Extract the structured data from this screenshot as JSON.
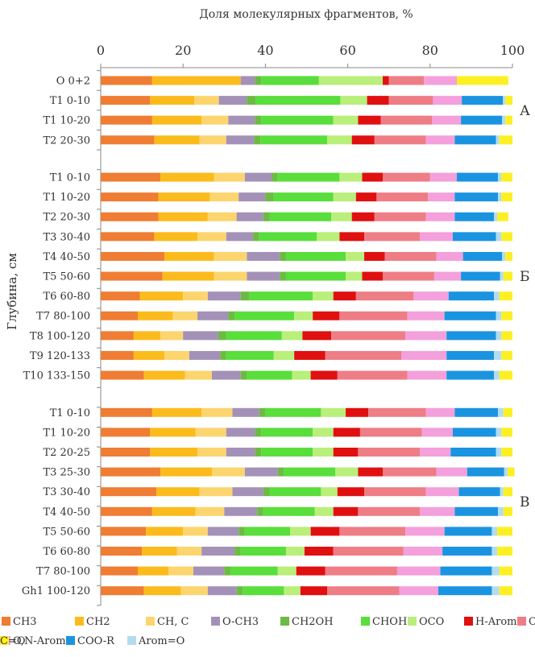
{
  "chart_data": {
    "type": "bar",
    "orientation": "horizontal",
    "stacked": true,
    "title": "Доля молекулярных фрагментов, %",
    "xlabel": "Доля молекулярных фрагментов, %",
    "ylabel": "Глубина, см",
    "xlim": [
      0,
      100
    ],
    "xticks": [
      "0",
      "20",
      "40",
      "60",
      "80",
      "100"
    ],
    "grid": false,
    "legend_position": "bottom",
    "series": [
      {
        "name": "CH3",
        "color": "#ef7d33"
      },
      {
        "name": "CH2",
        "color": "#fbbb1c"
      },
      {
        "name": "CH, C",
        "color": "#fdd56e"
      },
      {
        "name": "O-CH3",
        "color": "#a491b8"
      },
      {
        "name": "CH2OH",
        "color": "#6dba44"
      },
      {
        "name": "CHOH",
        "color": "#59de3b"
      },
      {
        "name": "OCO",
        "color": "#b9ef7a"
      },
      {
        "name": "H-Arom",
        "color": "#e01010"
      },
      {
        "name": "C-Arom",
        "color": "#ee7d86"
      },
      {
        "name": "O,N-Arom",
        "color": "#f3a0dc"
      },
      {
        "name": "COO-R",
        "color": "#1a94e0"
      },
      {
        "name": "Arom=O",
        "color": "#b2dcf0"
      },
      {
        "name": "C=O",
        "color": "#fcf024"
      }
    ],
    "groups": [
      {
        "label": "А",
        "rows": [
          {
            "label": "O 0+2",
            "values": [
              12.5,
              21.5,
              0.0,
              3.5,
              1.5,
              14.0,
              15.5,
              1.5,
              8.5,
              8.0,
              0.0,
              0.0,
              12.5
            ]
          },
          {
            "label": "T1 0-10",
            "values": [
              12.0,
              10.7,
              6.0,
              6.8,
              2.2,
              20.5,
              6.5,
              5.3,
              10.7,
              7.0,
              10.0,
              0.6,
              1.7
            ]
          },
          {
            "label": "T1 10-20",
            "values": [
              12.5,
              12.0,
              6.5,
              6.5,
              1.5,
              17.5,
              6.0,
              5.5,
              12.5,
              7.0,
              10.0,
              0.8,
              1.7
            ]
          },
          {
            "label": "T2 20-30",
            "values": [
              13.0,
              11.0,
              6.5,
              6.8,
              1.5,
              16.2,
              6.0,
              5.5,
              12.5,
              7.0,
              10.0,
              0.8,
              3.2
            ]
          }
        ]
      },
      {
        "label": "Б",
        "rows": [
          {
            "label": "T1 0-10",
            "values": [
              14.5,
              13.0,
              7.5,
              6.5,
              1.5,
              15.0,
              5.5,
              5.0,
              11.5,
              6.5,
              10.0,
              0.8,
              2.7
            ]
          },
          {
            "label": "T1 10-20",
            "values": [
              14.0,
              12.5,
              7.0,
              6.5,
              2.0,
              14.5,
              5.5,
              5.0,
              12.5,
              6.5,
              10.5,
              0.8,
              2.7
            ]
          },
          {
            "label": "T2 20-30",
            "values": [
              14.0,
              12.0,
              7.0,
              6.5,
              1.5,
              15.0,
              5.0,
              5.5,
              12.5,
              7.0,
              9.5,
              0.8,
              2.7
            ]
          },
          {
            "label": "T3 30-40",
            "values": [
              13.0,
              10.5,
              7.0,
              6.5,
              1.5,
              14.0,
              5.5,
              6.0,
              13.5,
              8.0,
              10.5,
              1.3,
              2.7
            ]
          },
          {
            "label": "T4 40-50",
            "values": [
              15.5,
              12.0,
              8.0,
              8.0,
              1.5,
              14.5,
              4.5,
              5.0,
              12.5,
              6.5,
              9.5,
              0.8,
              1.7
            ]
          },
          {
            "label": "T5 50-60",
            "values": [
              15.0,
              12.5,
              8.0,
              8.0,
              1.5,
              14.5,
              4.0,
              5.0,
              12.5,
              6.5,
              9.5,
              0.8,
              2.2
            ]
          },
          {
            "label": "T6 60-80",
            "values": [
              9.5,
              10.5,
              6.0,
              8.0,
              2.0,
              15.5,
              5.0,
              5.5,
              14.0,
              8.5,
              11.0,
              1.3,
              3.2
            ]
          },
          {
            "label": "T7 80-100",
            "values": [
              9.0,
              8.5,
              6.0,
              7.5,
              1.5,
              14.5,
              4.5,
              6.5,
              16.5,
              9.0,
              12.5,
              1.3,
              2.7
            ]
          },
          {
            "label": "T8 100-120",
            "values": [
              8.0,
              6.5,
              5.5,
              8.5,
              2.0,
              13.5,
              5.0,
              7.0,
              18.0,
              10.0,
              12.0,
              1.3,
              2.7
            ]
          },
          {
            "label": "T9 120-133",
            "values": [
              8.0,
              7.5,
              6.0,
              7.5,
              1.5,
              11.5,
              5.0,
              7.5,
              18.5,
              11.0,
              11.5,
              1.8,
              2.7
            ]
          },
          {
            "label": "T10 133-150",
            "values": [
              10.5,
              10.0,
              6.5,
              7.0,
              1.5,
              11.0,
              4.5,
              6.5,
              17.0,
              9.5,
              11.5,
              1.3,
              3.2
            ]
          }
        ]
      },
      {
        "label": "В",
        "rows": [
          {
            "label": "T1 0-10",
            "values": [
              12.5,
              12.0,
              7.5,
              6.5,
              1.5,
              13.5,
              6.0,
              5.5,
              14.0,
              7.0,
              10.5,
              1.3,
              2.2
            ]
          },
          {
            "label": "T1 10-20",
            "values": [
              12.0,
              11.0,
              7.5,
              7.0,
              1.5,
              12.5,
              5.0,
              6.5,
              15.0,
              7.5,
              10.5,
              1.3,
              2.7
            ]
          },
          {
            "label": "T2 20-25",
            "values": [
              12.0,
              11.5,
              7.0,
              7.0,
              1.5,
              12.5,
              5.0,
              6.0,
              15.0,
              7.5,
              11.0,
              1.3,
              2.7
            ]
          },
          {
            "label": "T3 25-30",
            "values": [
              14.5,
              12.5,
              8.0,
              8.0,
              1.5,
              12.5,
              5.5,
              6.0,
              13.0,
              7.5,
              9.0,
              0.8,
              1.7
            ]
          },
          {
            "label": "T3 30-40",
            "values": [
              13.5,
              10.5,
              8.0,
              7.5,
              1.5,
              12.5,
              4.0,
              6.5,
              15.0,
              8.0,
              10.0,
              0.8,
              2.2
            ]
          },
          {
            "label": "T4 40-50",
            "values": [
              12.5,
              10.5,
              7.0,
              8.0,
              1.5,
              12.5,
              4.5,
              6.0,
              15.0,
              8.5,
              10.5,
              1.3,
              2.2
            ]
          },
          {
            "label": "T5 50-60",
            "values": [
              11.0,
              9.0,
              6.0,
              7.5,
              1.5,
              11.0,
              5.0,
              7.0,
              16.0,
              9.5,
              11.5,
              1.3,
              3.7
            ]
          },
          {
            "label": "T6 60-80",
            "values": [
              10.0,
              8.5,
              6.0,
              8.0,
              1.5,
              11.0,
              4.5,
              7.0,
              17.0,
              9.5,
              12.0,
              1.3,
              3.7
            ]
          },
          {
            "label": "T7 80-100",
            "values": [
              9.0,
              7.5,
              6.0,
              7.5,
              1.5,
              11.5,
              4.5,
              7.0,
              17.5,
              10.5,
              12.5,
              1.8,
              3.2
            ]
          },
          {
            "label": "Gh1 100-120",
            "values": [
              10.5,
              9.0,
              6.5,
              7.0,
              1.5,
              10.0,
              4.0,
              6.5,
              17.5,
              9.5,
              13.0,
              1.8,
              3.2
            ]
          }
        ]
      }
    ]
  }
}
